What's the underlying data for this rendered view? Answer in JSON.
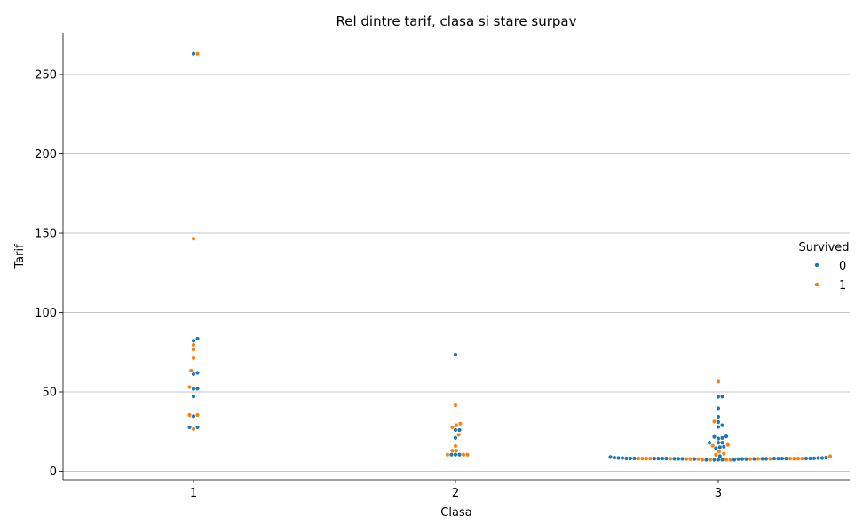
{
  "chart_data": {
    "type": "scatter",
    "subtype": "swarm",
    "title": "Rel dintre tarif, clasa si stare surpav",
    "xlabel": "Clasa",
    "ylabel": "Tarif",
    "categories": [
      "1",
      "2",
      "3"
    ],
    "ylim": [
      -5,
      276
    ],
    "yticks": [
      0,
      50,
      100,
      150,
      200,
      250
    ],
    "grid": "horizontal",
    "legend": {
      "title": "Survived",
      "position": "right"
    },
    "series": [
      {
        "name": "0",
        "color": "#1f77b4",
        "points": [
          {
            "x": "1",
            "y": 263
          },
          {
            "x": "1",
            "y": 83.5
          },
          {
            "x": "1",
            "y": 82.2
          },
          {
            "x": "1",
            "y": 62
          },
          {
            "x": "1",
            "y": 61.2
          },
          {
            "x": "1",
            "y": 52
          },
          {
            "x": "1",
            "y": 51.9
          },
          {
            "x": "1",
            "y": 47.1
          },
          {
            "x": "1",
            "y": 34.7
          },
          {
            "x": "1",
            "y": 27.7
          },
          {
            "x": "1",
            "y": 27.7
          },
          {
            "x": "2",
            "y": 73.5
          },
          {
            "x": "2",
            "y": 26
          },
          {
            "x": "2",
            "y": 26
          },
          {
            "x": "2",
            "y": 21
          },
          {
            "x": "2",
            "y": 10.5
          },
          {
            "x": "2",
            "y": 10.5
          },
          {
            "x": "2",
            "y": 10.5
          },
          {
            "x": "3",
            "y": 47
          },
          {
            "x": "3",
            "y": 46.9
          },
          {
            "x": "3",
            "y": 39.7
          },
          {
            "x": "3",
            "y": 34.4
          },
          {
            "x": "3",
            "y": 31
          },
          {
            "x": "3",
            "y": 29
          },
          {
            "x": "3",
            "y": 27.9
          },
          {
            "x": "3",
            "y": 22
          },
          {
            "x": "3",
            "y": 21.7
          },
          {
            "x": "3",
            "y": 21
          },
          {
            "x": "3",
            "y": 20.6
          },
          {
            "x": "3",
            "y": 18
          },
          {
            "x": "3",
            "y": 18
          },
          {
            "x": "3",
            "y": 18
          },
          {
            "x": "3",
            "y": 15.5
          },
          {
            "x": "3",
            "y": 15.2
          },
          {
            "x": "3",
            "y": 14.5
          },
          {
            "x": "3",
            "y": 9.6
          },
          {
            "x": "3",
            "y": 9
          },
          {
            "x": "3",
            "y": 8.6
          },
          {
            "x": "3",
            "y": 8.4
          },
          {
            "x": "3",
            "y": 8.4
          },
          {
            "x": "3",
            "y": 8.1
          },
          {
            "x": "3",
            "y": 8.1
          },
          {
            "x": "3",
            "y": 8.1
          },
          {
            "x": "3",
            "y": 8.05
          },
          {
            "x": "3",
            "y": 8.05
          },
          {
            "x": "3",
            "y": 8.05
          },
          {
            "x": "3",
            "y": 8.05
          },
          {
            "x": "3",
            "y": 8.05
          },
          {
            "x": "3",
            "y": 7.9
          },
          {
            "x": "3",
            "y": 7.9
          },
          {
            "x": "3",
            "y": 7.9
          },
          {
            "x": "3",
            "y": 7.9
          },
          {
            "x": "3",
            "y": 7.85
          },
          {
            "x": "3",
            "y": 7.8
          },
          {
            "x": "3",
            "y": 7.75
          },
          {
            "x": "3",
            "y": 7.75
          },
          {
            "x": "3",
            "y": 7.75
          },
          {
            "x": "3",
            "y": 7.73
          },
          {
            "x": "3",
            "y": 7.25
          },
          {
            "x": "3",
            "y": 7.25
          },
          {
            "x": "3",
            "y": 7.23
          },
          {
            "x": "3",
            "y": 7.23
          },
          {
            "x": "3",
            "y": 7.23
          },
          {
            "x": "3",
            "y": 8.05
          },
          {
            "x": "3",
            "y": 8.05
          },
          {
            "x": "3",
            "y": 8.05
          },
          {
            "x": "3",
            "y": 8.1
          },
          {
            "x": "3",
            "y": 8.1
          },
          {
            "x": "3",
            "y": 8.2
          },
          {
            "x": "3",
            "y": 8.35
          },
          {
            "x": "3",
            "y": 8.4
          },
          {
            "x": "3",
            "y": 8.65
          }
        ]
      },
      {
        "name": "1",
        "color": "#ff7f0e",
        "points": [
          {
            "x": "1",
            "y": 263
          },
          {
            "x": "1",
            "y": 146.5
          },
          {
            "x": "1",
            "y": 79.6
          },
          {
            "x": "1",
            "y": 76.7
          },
          {
            "x": "1",
            "y": 71.3
          },
          {
            "x": "1",
            "y": 63.4
          },
          {
            "x": "1",
            "y": 53.1
          },
          {
            "x": "1",
            "y": 35.5
          },
          {
            "x": "1",
            "y": 35.5
          },
          {
            "x": "1",
            "y": 26.6
          },
          {
            "x": "2",
            "y": 41.6
          },
          {
            "x": "2",
            "y": 30
          },
          {
            "x": "2",
            "y": 29
          },
          {
            "x": "2",
            "y": 27.7
          },
          {
            "x": "2",
            "y": 23
          },
          {
            "x": "2",
            "y": 16
          },
          {
            "x": "2",
            "y": 13
          },
          {
            "x": "2",
            "y": 13
          },
          {
            "x": "2",
            "y": 10.5
          },
          {
            "x": "2",
            "y": 10.5
          },
          {
            "x": "2",
            "y": 10.5
          },
          {
            "x": "3",
            "y": 56.5
          },
          {
            "x": "3",
            "y": 31.4
          },
          {
            "x": "3",
            "y": 16.7
          },
          {
            "x": "3",
            "y": 16.1
          },
          {
            "x": "3",
            "y": 12.5
          },
          {
            "x": "3",
            "y": 11.1
          },
          {
            "x": "3",
            "y": 10.5
          },
          {
            "x": "3",
            "y": 9.5
          },
          {
            "x": "3",
            "y": 8.05
          },
          {
            "x": "3",
            "y": 8.05
          },
          {
            "x": "3",
            "y": 8.05
          },
          {
            "x": "3",
            "y": 7.9
          },
          {
            "x": "3",
            "y": 7.9
          },
          {
            "x": "3",
            "y": 7.85
          },
          {
            "x": "3",
            "y": 7.78
          },
          {
            "x": "3",
            "y": 7.75
          },
          {
            "x": "3",
            "y": 7.75
          },
          {
            "x": "3",
            "y": 7.25
          },
          {
            "x": "3",
            "y": 7.23
          },
          {
            "x": "3",
            "y": 7.23
          },
          {
            "x": "3",
            "y": 7.23
          },
          {
            "x": "3",
            "y": 7.73
          },
          {
            "x": "3",
            "y": 8.05
          },
          {
            "x": "3",
            "y": 8.05
          },
          {
            "x": "3",
            "y": 8.05
          },
          {
            "x": "3",
            "y": 8.05
          },
          {
            "x": "3",
            "y": 8.05
          }
        ]
      }
    ]
  }
}
